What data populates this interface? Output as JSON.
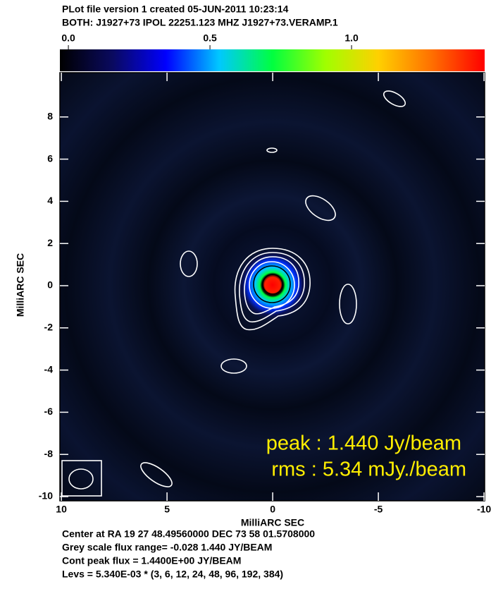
{
  "chart_data": {
    "type": "image",
    "header": [
      "PLot file version 1  created 05-JUN-2011 10:23:14",
      "BOTH: J1927+73  IPOL  22251.123 MHZ  J1927+73.VERAMP.1"
    ],
    "xlabel": "MilliARC SEC",
    "ylabel": "MilliARC SEC",
    "xlim": [
      10.07,
      -10.03
    ],
    "ylim": [
      -10.2,
      10.1
    ],
    "xticks": [
      10,
      5,
      0,
      -5,
      -10
    ],
    "yticks": [
      8,
      6,
      4,
      2,
      0,
      -2,
      -4,
      -6,
      -8,
      -10
    ],
    "colorbar": {
      "lim": [
        -0.03,
        1.47
      ],
      "ticks": [
        {
          "value": 0,
          "label": "0.0"
        },
        0.5,
        {
          "value": 1,
          "label": "1.0"
        }
      ],
      "colors": [
        "#000000",
        "#0a0a60",
        "#0000ff",
        "#00c8ff",
        "#00ff40",
        "#a0ff00",
        "#ffd000",
        "#ff7000",
        "#ff0000"
      ]
    },
    "annotations": [
      "peak :  1.440 Jy/beam",
      "rms  :  5.34 mJy./beam"
    ],
    "annotation_color": "#ffee00",
    "footer": [
      "Center at RA 19 27 48.49560000  DEC 73 58 01.5708000",
      "Grey scale flux range= -0.028 1.440 JY/BEAM",
      "Cont peak flux =  1.4400E+00 JY/BEAM",
      "Levs = 5.340E-03 * (3, 6, 12, 24, 48, 96, 192, 384)"
    ]
  }
}
